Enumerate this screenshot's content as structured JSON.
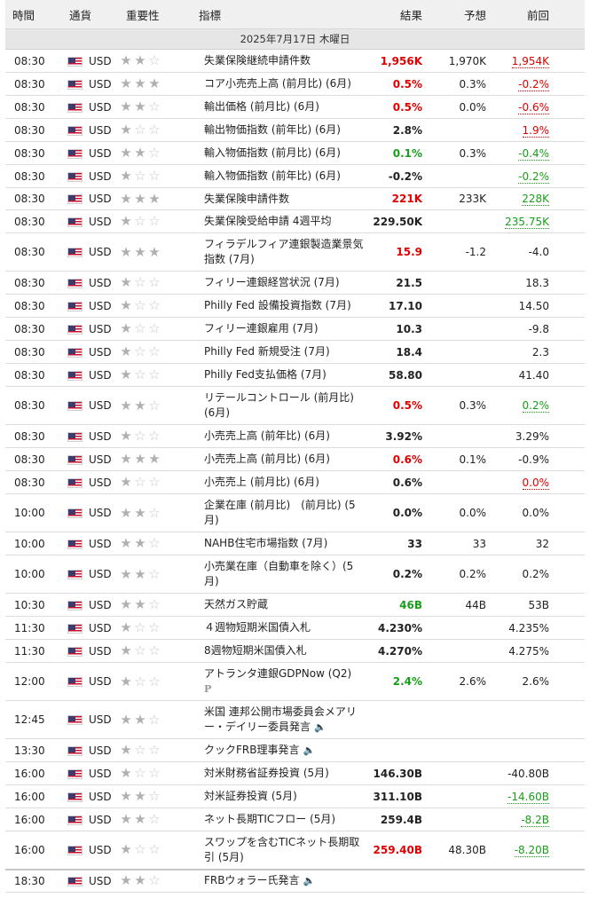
{
  "headers": {
    "time": "時間",
    "currency": "通貨",
    "importance": "重要性",
    "event": "指標",
    "actual": "結果",
    "forecast": "予想",
    "previous": "前回"
  },
  "date_label": "2025年7月17日 木曜日",
  "colors": {
    "red": "#e00000",
    "green": "#1a9e1a",
    "star_on": "#b0b0b0",
    "star_off": "#c8c8c8"
  },
  "rows": [
    {
      "time": "08:30",
      "currency": "USD",
      "stars": 2,
      "event": "失業保険継続申請件数",
      "actual": "1,956K",
      "actual_color": "red",
      "forecast": "1,970K",
      "previous": "1,954K",
      "previous_color": "red",
      "previous_ul": true,
      "h": 26
    },
    {
      "time": "08:30",
      "currency": "USD",
      "stars": 3,
      "event": "コア小売売上高 (前月比) (6月)",
      "actual": "0.5%",
      "actual_color": "red",
      "forecast": "0.3%",
      "previous": "-0.2%",
      "previous_color": "red",
      "previous_ul": true,
      "h": 26
    },
    {
      "time": "08:30",
      "currency": "USD",
      "stars": 2,
      "event": "輸出価格 (前月比) (6月)",
      "actual": "0.5%",
      "actual_color": "red",
      "forecast": "0.0%",
      "previous": "-0.6%",
      "previous_color": "red",
      "previous_ul": true,
      "h": 26
    },
    {
      "time": "08:30",
      "currency": "USD",
      "stars": 1,
      "event": "輸出物価指数 (前年比) (6月)",
      "actual": "2.8%",
      "actual_color": "",
      "forecast": "",
      "previous": "1.9%",
      "previous_color": "red",
      "previous_ul": true,
      "h": 26
    },
    {
      "time": "08:30",
      "currency": "USD",
      "stars": 2,
      "event": "輸入物価指数 (前月比) (6月)",
      "actual": "0.1%",
      "actual_color": "green",
      "forecast": "0.3%",
      "previous": "-0.4%",
      "previous_color": "green",
      "previous_ul": true,
      "h": 26
    },
    {
      "time": "08:30",
      "currency": "USD",
      "stars": 1,
      "event": "輸入物価指数 (前年比) (6月)",
      "actual": "-0.2%",
      "actual_color": "",
      "forecast": "",
      "previous": "-0.2%",
      "previous_color": "green",
      "previous_ul": true,
      "h": 26
    },
    {
      "time": "08:30",
      "currency": "USD",
      "stars": 3,
      "event": "失業保険申請件数",
      "actual": "221K",
      "actual_color": "red",
      "forecast": "233K",
      "previous": "228K",
      "previous_color": "green",
      "previous_ul": true,
      "h": 25
    },
    {
      "time": "08:30",
      "currency": "USD",
      "stars": 1,
      "event": "失業保険受給申請 4週平均",
      "actual": "229.50K",
      "actual_color": "",
      "forecast": "",
      "previous": "235.75K",
      "previous_color": "green",
      "previous_ul": true,
      "h": 26
    },
    {
      "time": "08:30",
      "currency": "USD",
      "stars": 3,
      "event": "フィラデルフィア連銀製造業景気指数 (7月)",
      "actual": "15.9",
      "actual_color": "red",
      "forecast": "-1.2",
      "previous": "-4.0",
      "previous_color": "",
      "previous_ul": false,
      "h": 43
    },
    {
      "time": "08:30",
      "currency": "USD",
      "stars": 1,
      "event": "フィリー連銀経営状況 (7月)",
      "actual": "21.5",
      "actual_color": "",
      "forecast": "",
      "previous": "18.3",
      "previous_color": "",
      "previous_ul": false,
      "h": 26
    },
    {
      "time": "08:30",
      "currency": "USD",
      "stars": 1,
      "event": "Philly Fed 設備投資指数 (7月)",
      "actual": "17.10",
      "actual_color": "",
      "forecast": "",
      "previous": "14.50",
      "previous_color": "",
      "previous_ul": false,
      "h": 26
    },
    {
      "time": "08:30",
      "currency": "USD",
      "stars": 1,
      "event": "フィリー連銀雇用 (7月)",
      "actual": "10.3",
      "actual_color": "",
      "forecast": "",
      "previous": "-9.8",
      "previous_color": "",
      "previous_ul": false,
      "h": 26
    },
    {
      "time": "08:30",
      "currency": "USD",
      "stars": 1,
      "event": "Philly Fed 新規受注 (7月)",
      "actual": "18.4",
      "actual_color": "",
      "forecast": "",
      "previous": "2.3",
      "previous_color": "",
      "previous_ul": false,
      "h": 26
    },
    {
      "time": "08:30",
      "currency": "USD",
      "stars": 1,
      "event": "Philly Fed支払価格 (7月)",
      "actual": "58.80",
      "actual_color": "",
      "forecast": "",
      "previous": "41.40",
      "previous_color": "",
      "previous_ul": false,
      "h": 26
    },
    {
      "time": "08:30",
      "currency": "USD",
      "stars": 2,
      "event": "リテールコントロール (前月比) (6月)",
      "actual": "0.5%",
      "actual_color": "red",
      "forecast": "0.3%",
      "previous": "0.2%",
      "previous_color": "green",
      "previous_ul": true,
      "h": 43
    },
    {
      "time": "08:30",
      "currency": "USD",
      "stars": 1,
      "event": "小売売上高 (前年比) (6月)",
      "actual": "3.92%",
      "actual_color": "",
      "forecast": "",
      "previous": "3.29%",
      "previous_color": "",
      "previous_ul": false,
      "h": 26
    },
    {
      "time": "08:30",
      "currency": "USD",
      "stars": 3,
      "event": "小売売上高 (前月比) (6月)",
      "actual": "0.6%",
      "actual_color": "red",
      "forecast": "0.1%",
      "previous": "-0.9%",
      "previous_color": "",
      "previous_ul": false,
      "h": 26
    },
    {
      "time": "08:30",
      "currency": "USD",
      "stars": 1,
      "event": "小売売上 (前月比) (6月)",
      "actual": "0.6%",
      "actual_color": "",
      "forecast": "",
      "previous": "0.0%",
      "previous_color": "red",
      "previous_ul": true,
      "h": 26
    },
    {
      "time": "10:00",
      "currency": "USD",
      "stars": 2,
      "event": "企業在庫 (前月比)　(前月比) (5月)",
      "actual": "0.0%",
      "actual_color": "",
      "forecast": "0.0%",
      "previous": "0.0%",
      "previous_color": "",
      "previous_ul": false,
      "h": 43
    },
    {
      "time": "10:00",
      "currency": "USD",
      "stars": 2,
      "event": "NAHB住宅市場指数 (7月)",
      "actual": "33",
      "actual_color": "",
      "forecast": "33",
      "previous": "32",
      "previous_color": "",
      "previous_ul": false,
      "h": 26
    },
    {
      "time": "10:00",
      "currency": "USD",
      "stars": 2,
      "event": "小売業在庫（自動車を除く）(5月)",
      "actual": "0.2%",
      "actual_color": "",
      "forecast": "0.2%",
      "previous": "0.2%",
      "previous_color": "",
      "previous_ul": false,
      "h": 43
    },
    {
      "time": "10:30",
      "currency": "USD",
      "stars": 2,
      "event": "天然ガス貯蔵",
      "actual": "46B",
      "actual_color": "green",
      "forecast": "44B",
      "previous": "53B",
      "previous_color": "",
      "previous_ul": false,
      "h": 26
    },
    {
      "time": "11:30",
      "currency": "USD",
      "stars": 1,
      "event": "４週物短期米国債入札",
      "actual": "4.230%",
      "actual_color": "",
      "forecast": "",
      "previous": "4.235%",
      "previous_color": "",
      "previous_ul": false,
      "h": 26
    },
    {
      "time": "11:30",
      "currency": "USD",
      "stars": 1,
      "event": "8週物短期米国債入札",
      "actual": "4.270%",
      "actual_color": "",
      "forecast": "",
      "previous": "4.275%",
      "previous_color": "",
      "previous_ul": false,
      "h": 26
    },
    {
      "time": "12:00",
      "currency": "USD",
      "stars": 1,
      "event": "アトランタ連銀GDPNow (Q2)",
      "pmark": "P",
      "actual": "2.4%",
      "actual_color": "green",
      "forecast": "2.6%",
      "previous": "2.6%",
      "previous_color": "",
      "previous_ul": false,
      "h": 43
    },
    {
      "time": "12:45",
      "currency": "USD",
      "stars": 2,
      "event": "米国 連邦公開市場委員会メアリー・デイリー委員発言",
      "speech": true,
      "actual": "",
      "actual_color": "",
      "forecast": "",
      "previous": "",
      "previous_color": "",
      "previous_ul": false,
      "h": 43
    },
    {
      "time": "13:30",
      "currency": "USD",
      "stars": 1,
      "event": "クックFRB理事発言",
      "speech": true,
      "actual": "",
      "actual_color": "",
      "forecast": "",
      "previous": "",
      "previous_color": "",
      "previous_ul": false,
      "h": 26
    },
    {
      "time": "16:00",
      "currency": "USD",
      "stars": 1,
      "event": "対米財務省証券投資 (5月)",
      "actual": "146.30B",
      "actual_color": "",
      "forecast": "",
      "previous": "-40.80B",
      "previous_color": "",
      "previous_ul": false,
      "h": 26
    },
    {
      "time": "16:00",
      "currency": "USD",
      "stars": 2,
      "event": "対米証券投資 (5月)",
      "actual": "311.10B",
      "actual_color": "",
      "forecast": "",
      "previous": "-14.60B",
      "previous_color": "green",
      "previous_ul": true,
      "h": 26
    },
    {
      "time": "16:00",
      "currency": "USD",
      "stars": 2,
      "event": "ネット長期TICフロー (5月)",
      "actual": "259.4B",
      "actual_color": "",
      "forecast": "",
      "previous": "-8.2B",
      "previous_color": "green",
      "previous_ul": true,
      "h": 26
    },
    {
      "time": "16:00",
      "currency": "USD",
      "stars": 1,
      "event": "スワップを含むTICネット長期取引 (5月)",
      "actual": "259.40B",
      "actual_color": "red",
      "forecast": "48.30B",
      "previous": "-8.20B",
      "previous_color": "green",
      "previous_ul": true,
      "h": 43
    },
    {
      "time": "18:30",
      "currency": "USD",
      "stars": 2,
      "event": "FRBウォラー氏発言",
      "speech": true,
      "sep": true,
      "actual": "",
      "actual_color": "",
      "forecast": "",
      "previous": "",
      "previous_color": "",
      "previous_ul": false,
      "h": 26
    }
  ]
}
